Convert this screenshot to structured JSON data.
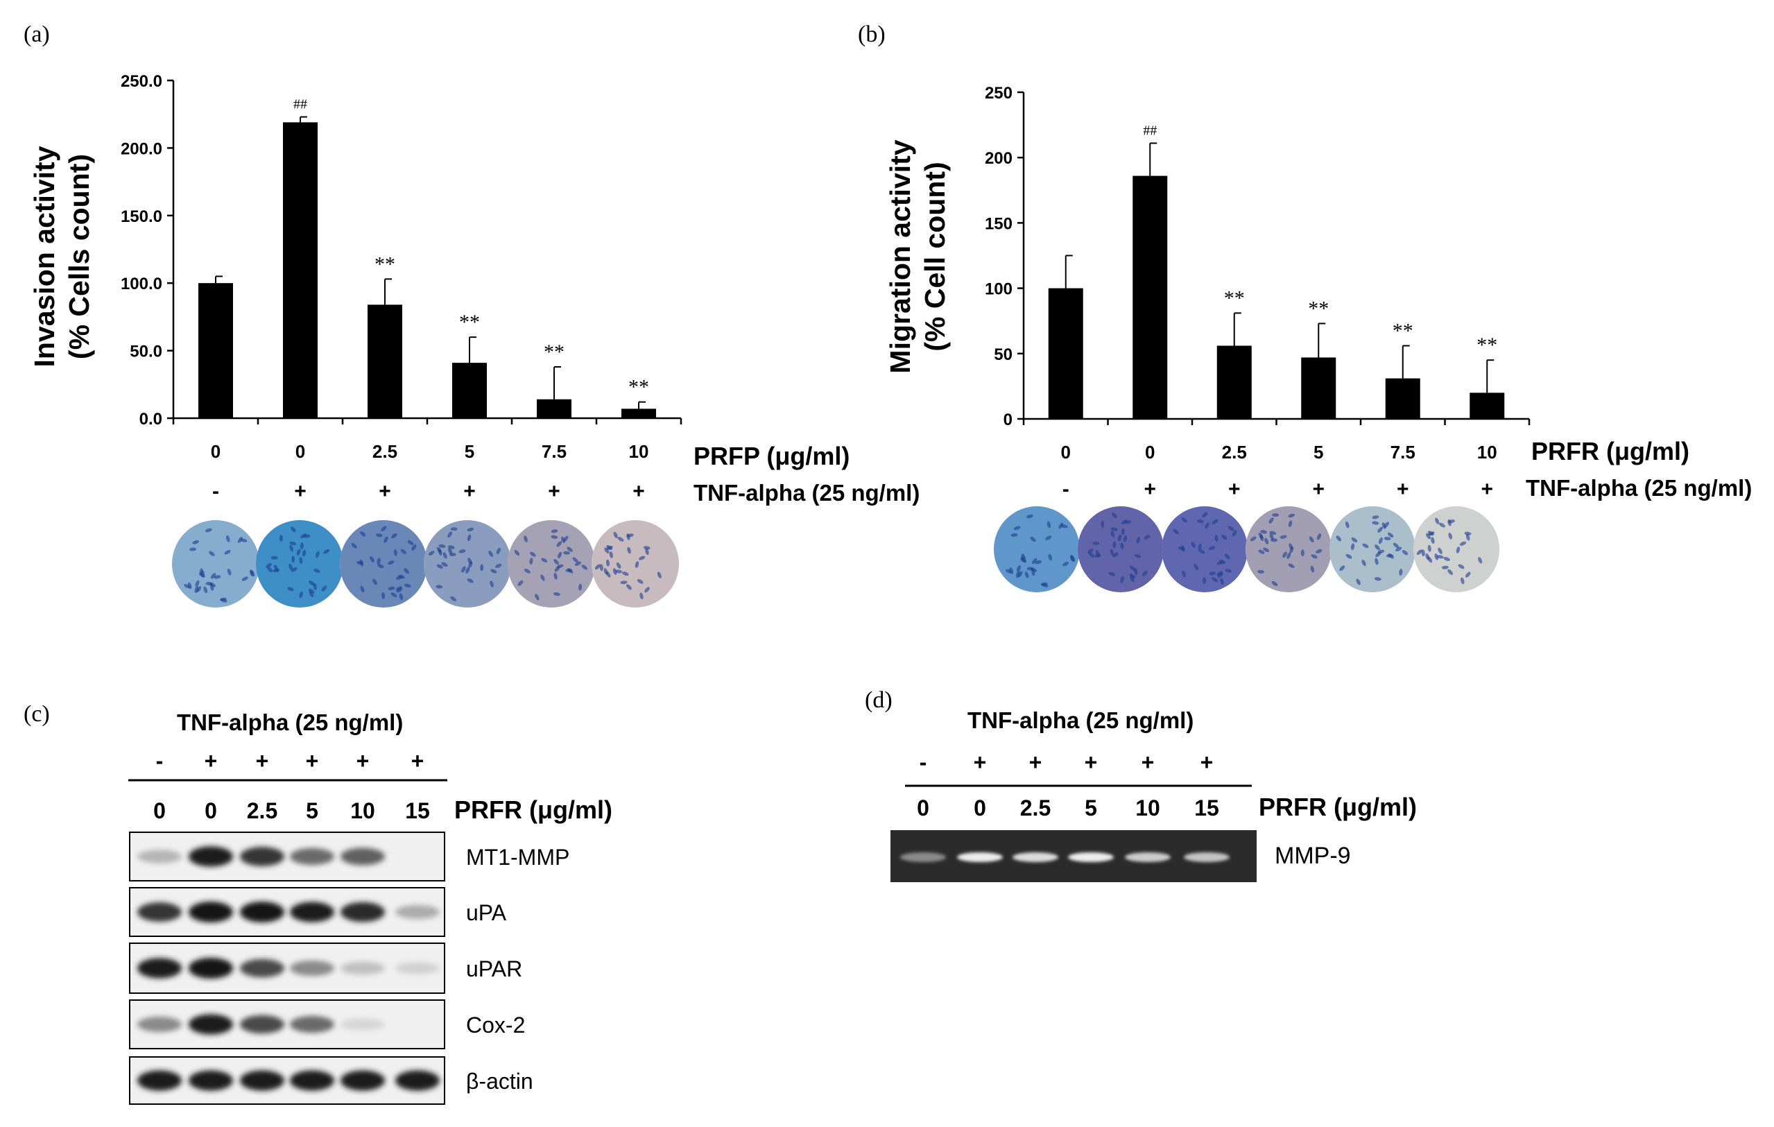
{
  "panels": {
    "a": "(a)",
    "b": "(b)",
    "c": "(c)",
    "d": "(d)"
  },
  "chart_data": [
    {
      "type": "bar",
      "panel": "(a)",
      "ylabel_line1": "Invasion activity",
      "ylabel_line2": "(% Cells count)",
      "ylim": [
        0,
        250
      ],
      "yticks": [
        "0.0",
        "50.0",
        "100.0",
        "150.0",
        "200.0",
        "250.0"
      ],
      "categories": [
        "0",
        "0",
        "2.5",
        "5",
        "7.5",
        "10"
      ],
      "values": [
        100,
        219,
        84,
        41,
        14,
        7
      ],
      "errors": [
        5,
        4,
        19,
        19,
        24,
        5
      ],
      "annotations": [
        "",
        "##",
        "**",
        "**",
        "**",
        "**"
      ],
      "tnf_row": [
        "-",
        "+",
        "+",
        "+",
        "+",
        "+"
      ],
      "row1_label": "PRFP (μg/ml)",
      "row2_label": "TNF-alpha (25 ng/ml)",
      "well_colors": [
        "#7aa6cc",
        "#1f7fc5",
        "#4a72b0",
        "#6b89b6",
        "#8a8aa8",
        "#b4a8b4"
      ]
    },
    {
      "type": "bar",
      "panel": "(b)",
      "ylabel_line1": "Migration  activity",
      "ylabel_line2": "(% Cell count)",
      "ylim": [
        0,
        250
      ],
      "yticks": [
        "0",
        "50",
        "100",
        "150",
        "200",
        "250"
      ],
      "categories": [
        "0",
        "0",
        "2.5",
        "5",
        "7.5",
        "10"
      ],
      "values": [
        100,
        186,
        56,
        47,
        31,
        20
      ],
      "errors": [
        25,
        25,
        25,
        26,
        25,
        25
      ],
      "annotations": [
        "",
        "##",
        "**",
        "**",
        "**",
        "**"
      ],
      "tnf_row": [
        "-",
        "+",
        "+",
        "+",
        "+",
        "+"
      ],
      "row1_label": "PRFR (μg/ml)",
      "row2_label": "TNF-alpha (25 ng/ml)",
      "well_colors": [
        "#4f8fc8",
        "#4a4ea2",
        "#3f4aa8",
        "#8a8aa6",
        "#8fb0c6",
        "#c0c8cc"
      ]
    }
  ],
  "blot_c": {
    "header": "TNF-alpha (25 ng/ml)",
    "signs": [
      "-",
      "+",
      "+",
      "+",
      "+",
      "+"
    ],
    "doses": [
      "0",
      "0",
      "2.5",
      "5",
      "10",
      "15"
    ],
    "dose_label": "PRFR (μg/ml)",
    "rows": [
      {
        "label": "MT1-MMP",
        "intensities": [
          0.25,
          0.95,
          0.85,
          0.6,
          0.65,
          0.0
        ]
      },
      {
        "label": "uPA",
        "intensities": [
          0.85,
          1.0,
          1.0,
          0.95,
          0.9,
          0.3
        ]
      },
      {
        "label": "uPAR",
        "intensities": [
          0.95,
          1.0,
          0.75,
          0.45,
          0.2,
          0.12
        ]
      },
      {
        "label": "Cox-2",
        "intensities": [
          0.45,
          0.95,
          0.75,
          0.6,
          0.1,
          0.0
        ]
      },
      {
        "label": "β-actin",
        "intensities": [
          0.95,
          0.95,
          0.95,
          0.95,
          0.95,
          0.95
        ]
      }
    ]
  },
  "gel_d": {
    "header": "TNF-alpha (25 ng/ml)",
    "signs": [
      "-",
      "+",
      "+",
      "+",
      "+",
      "+"
    ],
    "doses": [
      "0",
      "0",
      "2.5",
      "5",
      "10",
      "15"
    ],
    "dose_label": "PRFR (μg/ml)",
    "band_label": "MMP-9",
    "intensities": [
      0.35,
      0.95,
      0.85,
      0.95,
      0.75,
      0.7
    ]
  }
}
